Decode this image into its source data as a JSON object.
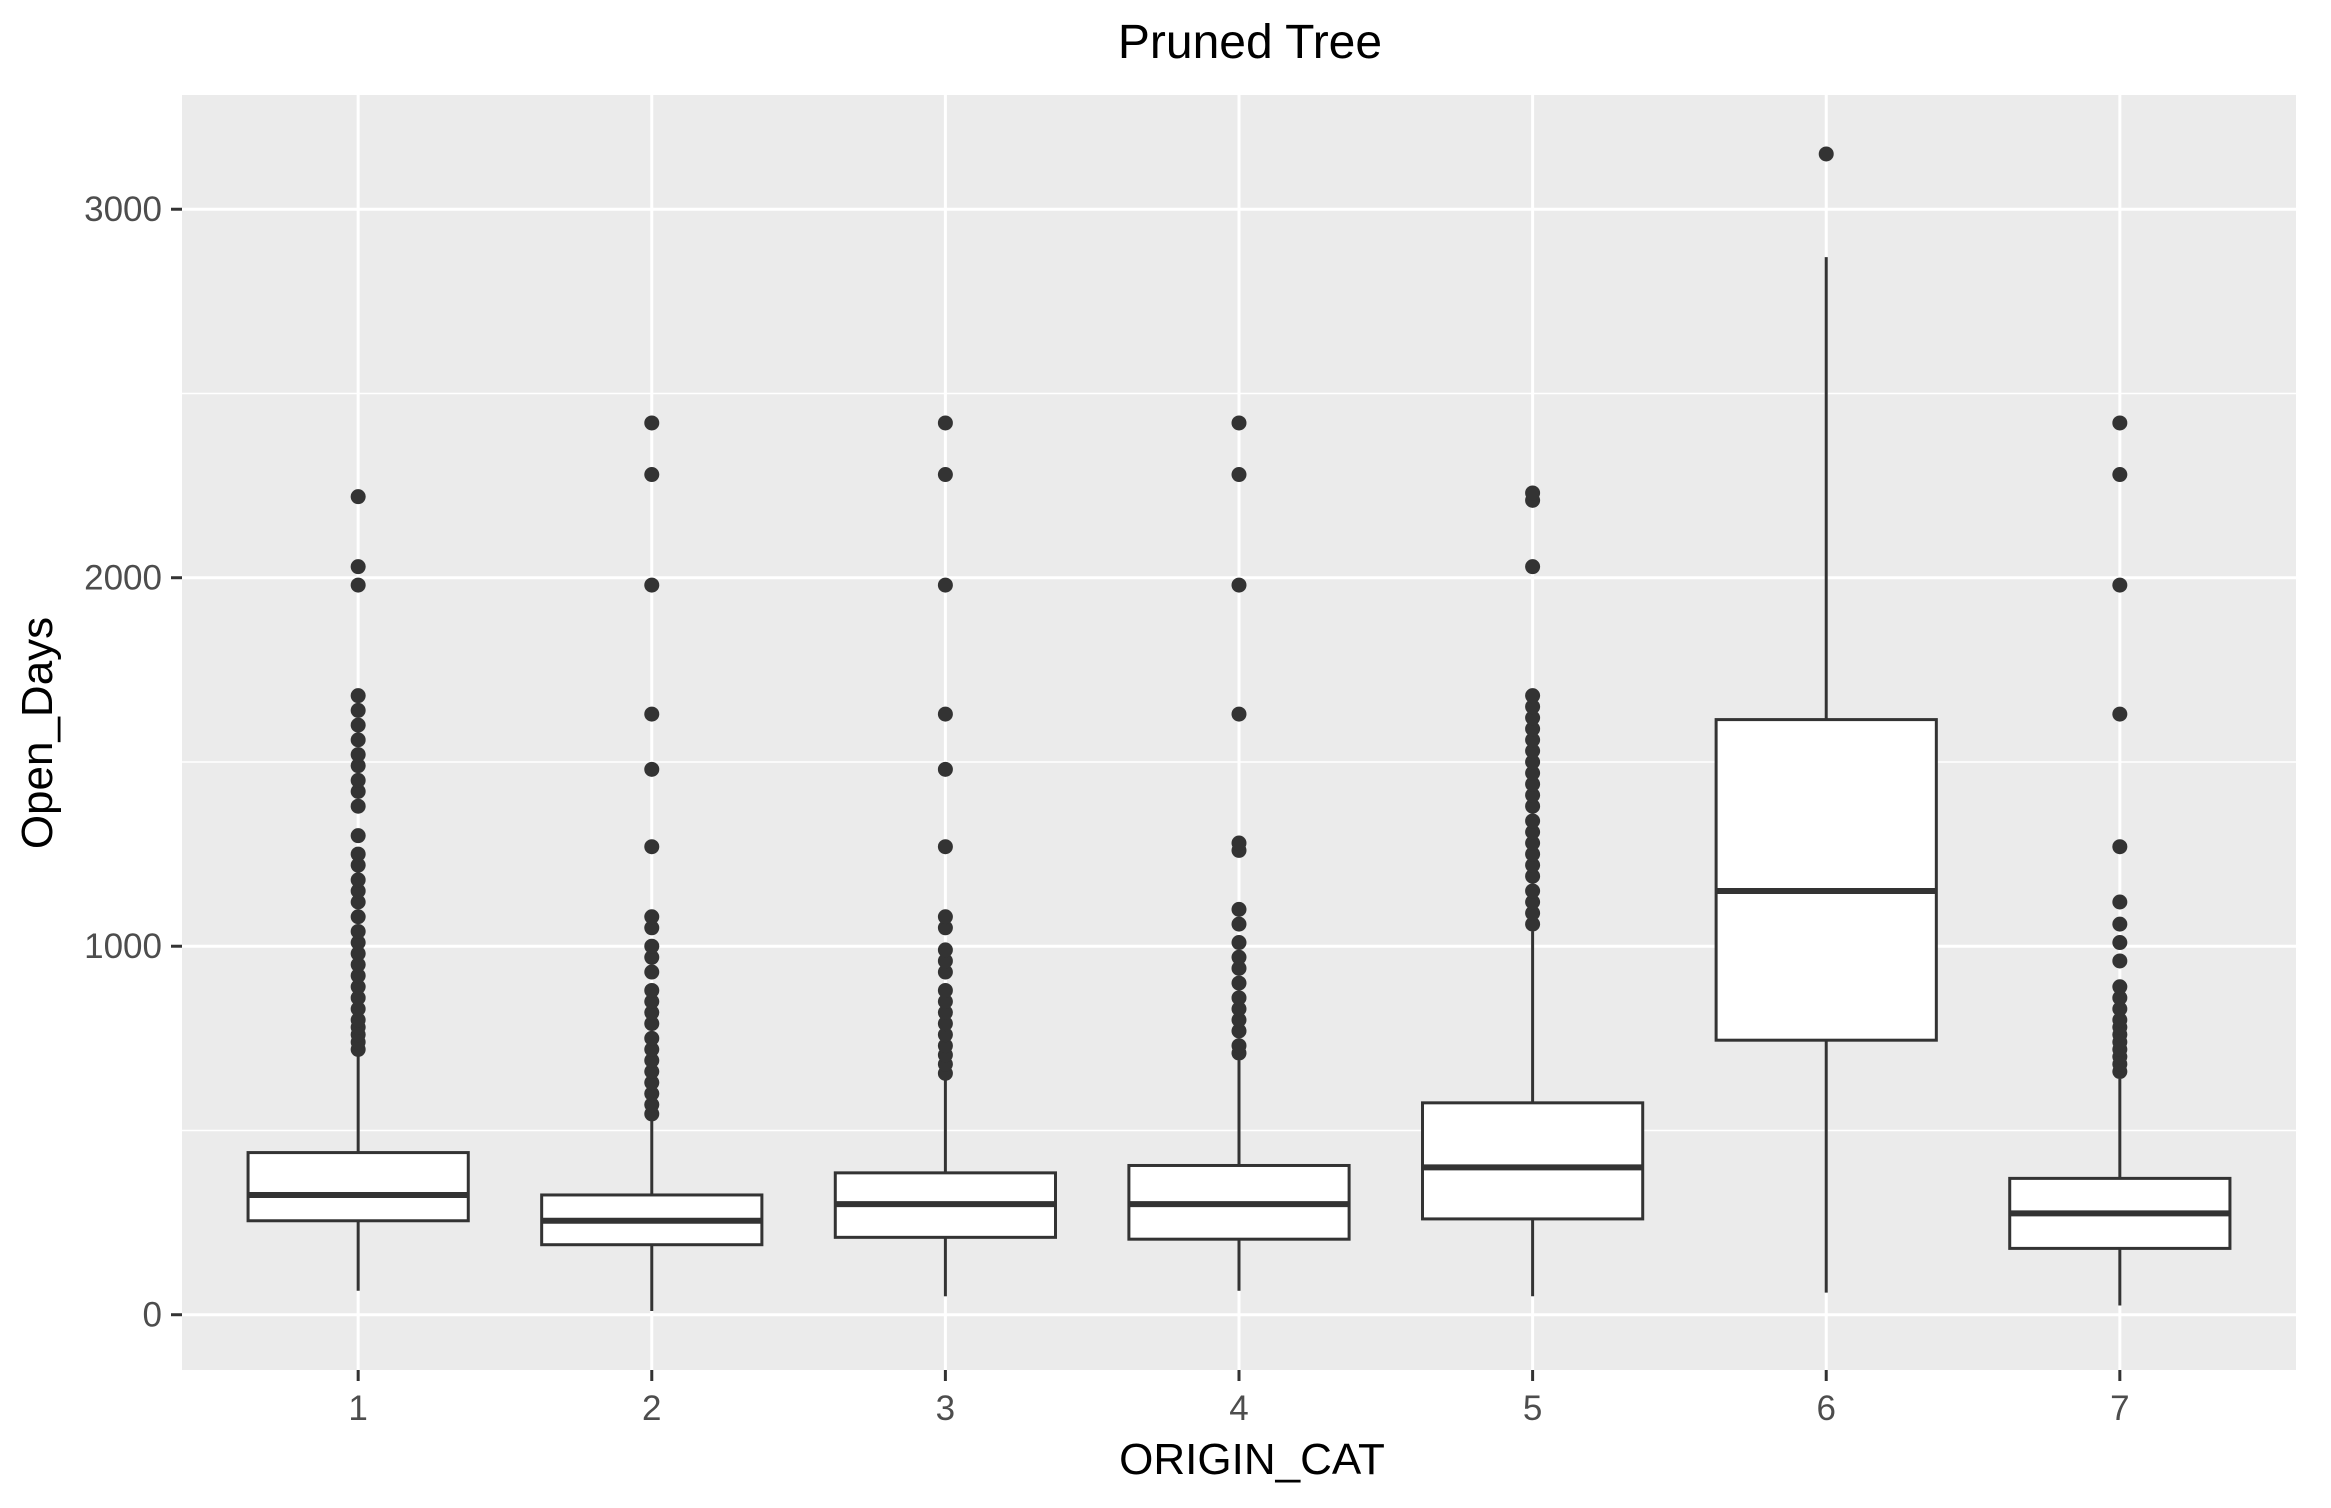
{
  "chart_data": {
    "type": "boxplot",
    "title": "Pruned Tree",
    "xlabel": "ORIGIN_CAT",
    "ylabel": "Open_Days",
    "categories": [
      "1",
      "2",
      "3",
      "4",
      "5",
      "6",
      "7"
    ],
    "ylim": [
      -150,
      3310
    ],
    "y_ticks": [
      0,
      1000,
      2000,
      3000
    ],
    "y_tick_labels": [
      "0",
      "1000",
      "2000",
      "3000"
    ],
    "grid": true,
    "panel_background": "#ebebeb",
    "box_color": "#333333",
    "boxes": [
      {
        "category": "1",
        "whisker_low": 65,
        "q1": 255,
        "median": 325,
        "q3": 440,
        "whisker_high": 705,
        "outliers": [
          720,
          740,
          760,
          780,
          800,
          830,
          860,
          890,
          920,
          950,
          980,
          1010,
          1040,
          1080,
          1120,
          1150,
          1180,
          1220,
          1250,
          1300,
          1380,
          1420,
          1450,
          1490,
          1520,
          1560,
          1600,
          1640,
          1680,
          1980,
          2030,
          2220
        ]
      },
      {
        "category": "2",
        "whisker_low": 10,
        "q1": 190,
        "median": 255,
        "q3": 325,
        "whisker_high": 530,
        "outliers": [
          545,
          570,
          600,
          630,
          660,
          690,
          720,
          750,
          790,
          820,
          850,
          880,
          930,
          970,
          1000,
          1050,
          1080,
          1270,
          1480,
          1630,
          1980,
          2280,
          2420
        ]
      },
      {
        "category": "3",
        "whisker_low": 50,
        "q1": 210,
        "median": 300,
        "q3": 385,
        "whisker_high": 640,
        "outliers": [
          655,
          680,
          705,
          730,
          760,
          790,
          820,
          850,
          880,
          930,
          960,
          990,
          1050,
          1080,
          1270,
          1480,
          1630,
          1980,
          2280,
          2420
        ]
      },
      {
        "category": "4",
        "whisker_low": 65,
        "q1": 205,
        "median": 300,
        "q3": 405,
        "whisker_high": 690,
        "outliers": [
          710,
          730,
          770,
          800,
          830,
          860,
          900,
          940,
          970,
          1010,
          1060,
          1100,
          1260,
          1280,
          1630,
          1980,
          2280,
          2420
        ]
      },
      {
        "category": "5",
        "whisker_low": 50,
        "q1": 260,
        "median": 400,
        "q3": 575,
        "whisker_high": 1040,
        "outliers": [
          1060,
          1090,
          1120,
          1150,
          1190,
          1220,
          1250,
          1280,
          1310,
          1340,
          1380,
          1410,
          1440,
          1470,
          1500,
          1530,
          1560,
          1590,
          1620,
          1650,
          1680,
          2030,
          2210,
          2230
        ]
      },
      {
        "category": "6",
        "whisker_low": 60,
        "q1": 745,
        "median": 1150,
        "q3": 1615,
        "whisker_high": 2870,
        "outliers": [
          3150
        ]
      },
      {
        "category": "7",
        "whisker_low": 25,
        "q1": 180,
        "median": 275,
        "q3": 370,
        "whisker_high": 640,
        "outliers": [
          660,
          680,
          700,
          720,
          740,
          760,
          780,
          800,
          830,
          860,
          890,
          960,
          1010,
          1060,
          1120,
          1270,
          1630,
          1980,
          2280,
          2420
        ]
      }
    ]
  }
}
